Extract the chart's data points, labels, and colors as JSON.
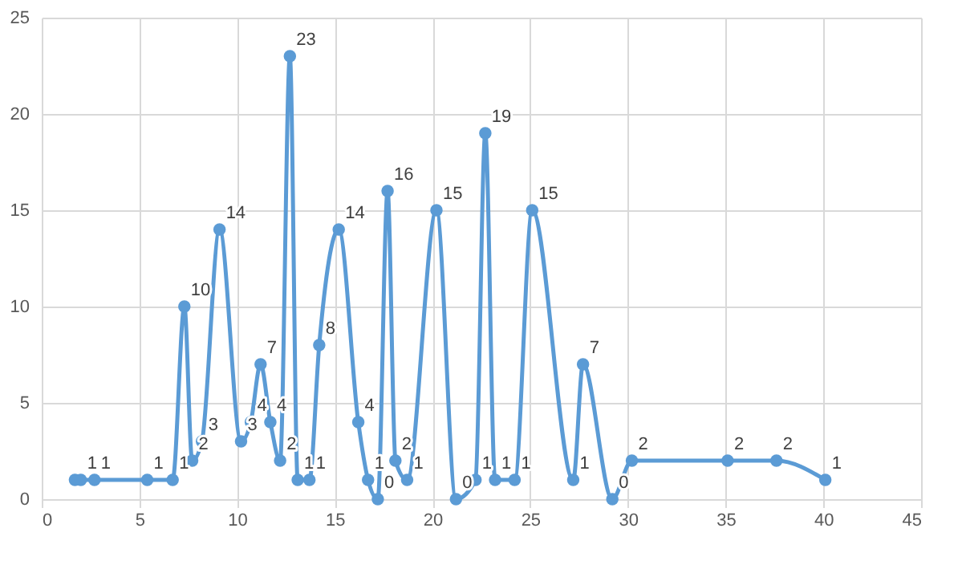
{
  "chart_data": {
    "type": "line",
    "x": [
      1.7,
      2.0,
      2.7,
      5.4,
      6.7,
      7.3,
      7.7,
      8.2,
      9.1,
      10.2,
      10.7,
      11.2,
      11.7,
      12.2,
      12.7,
      13.1,
      13.7,
      14.2,
      15.2,
      16.2,
      16.7,
      17.2,
      17.7,
      18.1,
      18.7,
      20.2,
      21.2,
      22.2,
      22.7,
      23.2,
      24.2,
      25.1,
      27.2,
      27.7,
      29.2,
      30.2,
      35.1,
      37.6,
      40.1
    ],
    "series": [
      {
        "color": "#5b9bd5",
        "values": [
          1,
          1,
          1,
          1,
          1,
          10,
          2,
          3,
          14,
          3,
          4,
          7,
          4,
          2,
          23,
          1,
          1,
          8,
          14,
          4,
          1,
          0,
          16,
          2,
          1,
          15,
          0,
          1,
          19,
          1,
          1,
          15,
          1,
          7,
          0,
          2,
          2,
          2,
          1
        ],
        "value_labels": [
          null,
          "1",
          "1",
          "1",
          "1",
          "10",
          "2",
          "3",
          "14",
          "3",
          "4",
          "7",
          "4",
          "2",
          "23",
          "1",
          "1",
          "8",
          "14",
          "4",
          "1",
          "0",
          "16",
          "2",
          "1",
          "15",
          "0",
          "1",
          "19",
          "1",
          "1",
          "15",
          "1",
          "7",
          "0",
          "2",
          "2",
          "2",
          "1"
        ]
      }
    ],
    "xlim": [
      0,
      45
    ],
    "xticks": [
      0,
      5,
      10,
      15,
      20,
      25,
      30,
      35,
      40,
      45
    ],
    "ylim": [
      0,
      25
    ],
    "yticks": [
      0,
      5,
      10,
      15,
      20,
      25
    ],
    "grid": true,
    "marker": "circle",
    "line_style": "solid"
  }
}
